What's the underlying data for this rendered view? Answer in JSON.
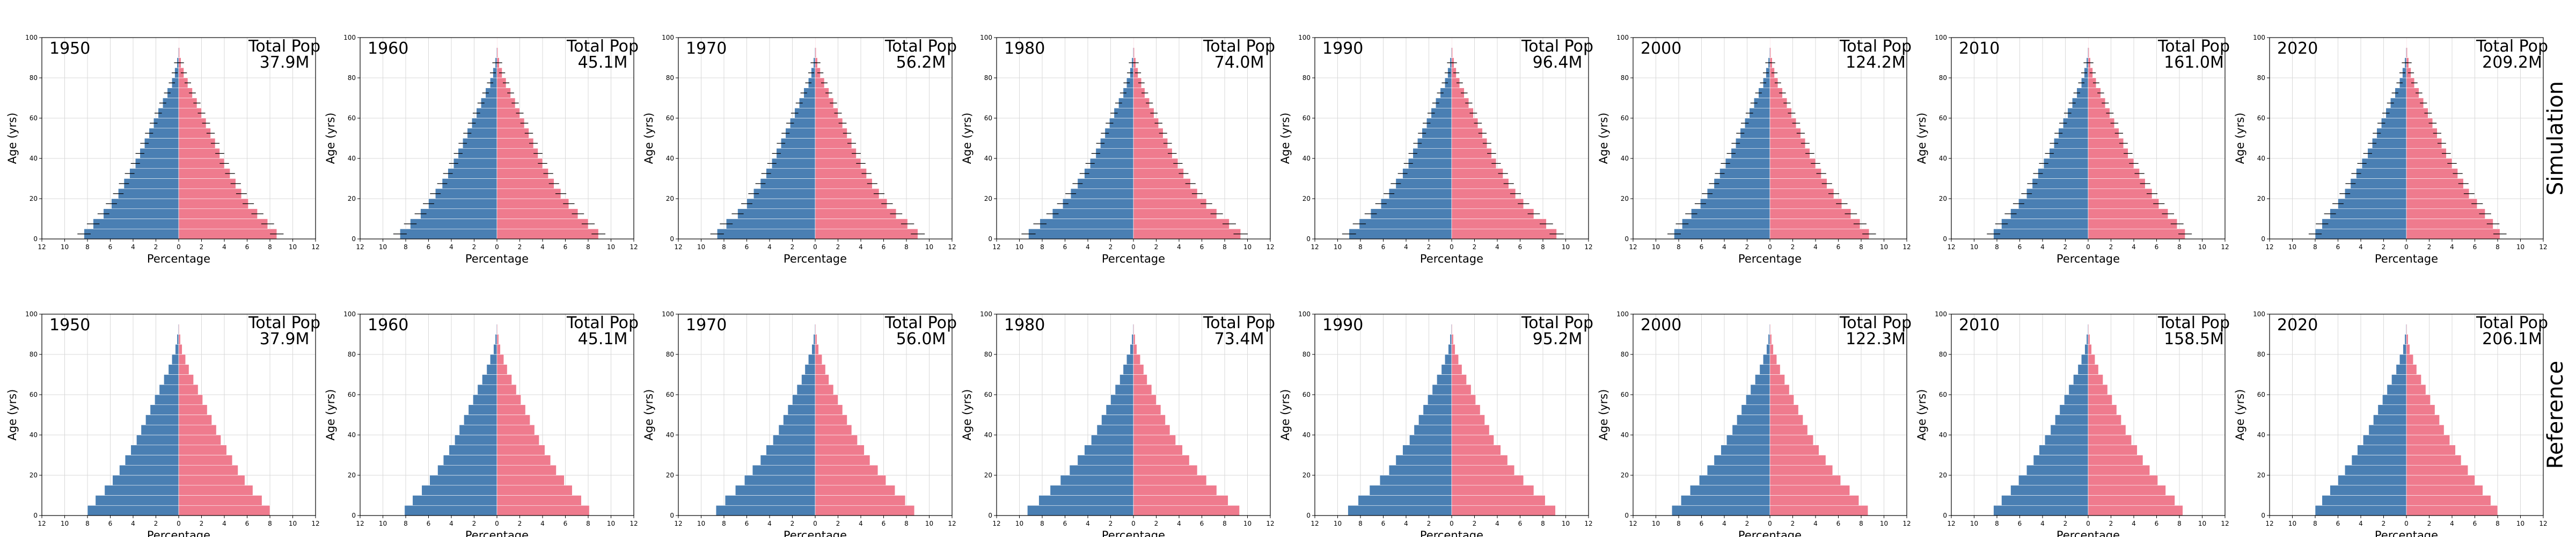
{
  "colors": {
    "male": "#4a7fb3",
    "female": "#ef7b8e",
    "grid": "#d8d8d8",
    "frame": "#000000"
  },
  "chart_data": {
    "type": "bar",
    "orientation": "horizontal",
    "layout": "population-pyramids-grid",
    "age_bins": [
      0,
      5,
      10,
      15,
      20,
      25,
      30,
      35,
      40,
      45,
      50,
      55,
      60,
      65,
      70,
      75,
      80,
      85,
      90,
      95
    ],
    "ylabel": "Age (yrs)",
    "xlabel": "Percentage",
    "xticks": [
      "12",
      "10",
      "8",
      "6",
      "4",
      "2",
      "0",
      "2",
      "4",
      "6",
      "8",
      "10",
      "12"
    ],
    "yticks": [
      "0",
      "20",
      "40",
      "60",
      "80",
      "100"
    ],
    "xlim": [
      -12,
      12
    ],
    "ylim": [
      0,
      100
    ],
    "grid": true,
    "total_prefix": "Total Pop",
    "rows": [
      {
        "label": "Simulation",
        "error_bars": true,
        "panels": [
          {
            "year": "1950",
            "total": "37.9M",
            "male": [
              8.3,
              7.5,
              6.6,
              5.9,
              5.3,
              4.8,
              4.3,
              3.8,
              3.4,
              3.0,
              2.6,
              2.2,
              1.8,
              1.4,
              1.0,
              0.6,
              0.35,
              0.15,
              0.05,
              0.02
            ],
            "female": [
              8.6,
              7.8,
              6.9,
              6.1,
              5.5,
              5.0,
              4.5,
              4.0,
              3.6,
              3.2,
              2.8,
              2.4,
              2.0,
              1.6,
              1.2,
              0.8,
              0.45,
              0.2,
              0.08,
              0.03
            ]
          },
          {
            "year": "1960",
            "total": "45.1M",
            "male": [
              8.5,
              7.6,
              6.7,
              6.0,
              5.4,
              4.8,
              4.3,
              3.8,
              3.4,
              3.0,
              2.6,
              2.2,
              1.8,
              1.4,
              1.0,
              0.6,
              0.35,
              0.15,
              0.05,
              0.02
            ],
            "female": [
              8.9,
              8.0,
              7.1,
              6.3,
              5.6,
              5.0,
              4.5,
              4.0,
              3.6,
              3.2,
              2.8,
              2.4,
              2.0,
              1.6,
              1.2,
              0.8,
              0.45,
              0.2,
              0.08,
              0.03
            ]
          },
          {
            "year": "1970",
            "total": "56.2M",
            "male": [
              8.6,
              7.8,
              6.8,
              6.0,
              5.4,
              4.8,
              4.3,
              3.8,
              3.4,
              3.0,
              2.6,
              2.2,
              1.8,
              1.4,
              1.0,
              0.6,
              0.35,
              0.15,
              0.05,
              0.02
            ],
            "female": [
              9.0,
              8.1,
              7.1,
              6.3,
              5.6,
              5.0,
              4.5,
              4.0,
              3.6,
              3.2,
              2.8,
              2.4,
              2.0,
              1.6,
              1.2,
              0.8,
              0.45,
              0.2,
              0.08,
              0.03
            ]
          },
          {
            "year": "1980",
            "total": "74.0M",
            "male": [
              9.2,
              8.2,
              7.1,
              6.2,
              5.5,
              4.9,
              4.3,
              3.8,
              3.3,
              2.9,
              2.5,
              2.1,
              1.7,
              1.3,
              0.9,
              0.6,
              0.3,
              0.15,
              0.05,
              0.02
            ],
            "female": [
              9.4,
              8.4,
              7.3,
              6.4,
              5.6,
              5.0,
              4.4,
              3.9,
              3.4,
              3.0,
              2.6,
              2.2,
              1.8,
              1.4,
              1.0,
              0.7,
              0.4,
              0.2,
              0.08,
              0.03
            ]
          },
          {
            "year": "1990",
            "total": "96.4M",
            "male": [
              9.0,
              8.1,
              7.1,
              6.2,
              5.5,
              4.9,
              4.3,
              3.8,
              3.4,
              3.0,
              2.6,
              2.2,
              1.8,
              1.4,
              1.0,
              0.6,
              0.35,
              0.15,
              0.05,
              0.02
            ],
            "female": [
              9.2,
              8.3,
              7.2,
              6.3,
              5.6,
              5.0,
              4.5,
              3.9,
              3.5,
              3.1,
              2.7,
              2.3,
              1.9,
              1.5,
              1.1,
              0.7,
              0.4,
              0.2,
              0.08,
              0.03
            ]
          },
          {
            "year": "2000",
            "total": "124.2M",
            "male": [
              8.4,
              7.7,
              6.9,
              6.1,
              5.5,
              4.9,
              4.4,
              3.9,
              3.4,
              3.0,
              2.6,
              2.2,
              1.8,
              1.4,
              1.0,
              0.6,
              0.35,
              0.15,
              0.05,
              0.02
            ],
            "female": [
              8.7,
              7.9,
              7.1,
              6.3,
              5.6,
              5.0,
              4.5,
              4.0,
              3.5,
              3.1,
              2.7,
              2.3,
              1.9,
              1.5,
              1.1,
              0.7,
              0.4,
              0.2,
              0.08,
              0.03
            ]
          },
          {
            "year": "2010",
            "total": "161.0M",
            "male": [
              8.3,
              7.6,
              6.8,
              6.1,
              5.4,
              4.9,
              4.4,
              3.9,
              3.4,
              3.0,
              2.6,
              2.2,
              1.8,
              1.4,
              1.0,
              0.6,
              0.35,
              0.15,
              0.05,
              0.02
            ],
            "female": [
              8.5,
              7.8,
              7.0,
              6.2,
              5.6,
              5.0,
              4.5,
              4.0,
              3.5,
              3.1,
              2.7,
              2.3,
              1.9,
              1.5,
              1.1,
              0.7,
              0.4,
              0.2,
              0.08,
              0.03
            ]
          },
          {
            "year": "2020",
            "total": "209.2M",
            "male": [
              8.0,
              7.4,
              6.7,
              6.0,
              5.4,
              4.9,
              4.4,
              3.9,
              3.4,
              3.0,
              2.6,
              2.2,
              1.8,
              1.4,
              1.0,
              0.6,
              0.35,
              0.15,
              0.05,
              0.02
            ],
            "female": [
              8.2,
              7.6,
              6.9,
              6.2,
              5.5,
              5.0,
              4.5,
              4.0,
              3.5,
              3.1,
              2.7,
              2.3,
              1.9,
              1.5,
              1.1,
              0.7,
              0.4,
              0.2,
              0.08,
              0.03
            ]
          }
        ]
      },
      {
        "label": "Reference",
        "error_bars": false,
        "panels": [
          {
            "year": "1950",
            "total": "37.9M",
            "male": [
              8.0,
              7.3,
              6.5,
              5.8,
              5.2,
              4.7,
              4.2,
              3.7,
              3.3,
              2.9,
              2.5,
              2.1,
              1.7,
              1.3,
              0.9,
              0.6,
              0.3,
              0.15,
              0.05,
              0.02
            ],
            "female": [
              8.0,
              7.3,
              6.5,
              5.8,
              5.2,
              4.7,
              4.2,
              3.7,
              3.3,
              2.9,
              2.5,
              2.1,
              1.7,
              1.3,
              0.9,
              0.6,
              0.3,
              0.15,
              0.05,
              0.02
            ]
          },
          {
            "year": "1960",
            "total": "45.1M",
            "male": [
              8.1,
              7.4,
              6.6,
              5.9,
              5.2,
              4.7,
              4.2,
              3.7,
              3.3,
              2.9,
              2.5,
              2.1,
              1.7,
              1.3,
              0.9,
              0.6,
              0.3,
              0.15,
              0.05,
              0.02
            ],
            "female": [
              8.1,
              7.4,
              6.6,
              5.9,
              5.2,
              4.7,
              4.2,
              3.7,
              3.3,
              2.9,
              2.5,
              2.1,
              1.7,
              1.3,
              0.9,
              0.6,
              0.3,
              0.15,
              0.05,
              0.02
            ]
          },
          {
            "year": "1970",
            "total": "56.0M",
            "male": [
              8.7,
              7.9,
              7.0,
              6.2,
              5.5,
              4.8,
              4.3,
              3.7,
              3.2,
              2.8,
              2.4,
              2.0,
              1.6,
              1.2,
              0.9,
              0.6,
              0.3,
              0.15,
              0.05,
              0.02
            ],
            "female": [
              8.7,
              7.9,
              7.0,
              6.2,
              5.5,
              4.8,
              4.3,
              3.7,
              3.2,
              2.8,
              2.4,
              2.0,
              1.6,
              1.2,
              0.9,
              0.6,
              0.3,
              0.15,
              0.05,
              0.02
            ]
          },
          {
            "year": "1980",
            "total": "73.4M",
            "male": [
              9.3,
              8.3,
              7.3,
              6.4,
              5.6,
              4.9,
              4.3,
              3.7,
              3.2,
              2.8,
              2.4,
              2.0,
              1.6,
              1.2,
              0.9,
              0.6,
              0.3,
              0.15,
              0.05,
              0.02
            ],
            "female": [
              9.3,
              8.3,
              7.3,
              6.4,
              5.6,
              4.9,
              4.3,
              3.7,
              3.2,
              2.8,
              2.4,
              2.0,
              1.6,
              1.2,
              0.9,
              0.6,
              0.3,
              0.15,
              0.05,
              0.02
            ]
          },
          {
            "year": "1990",
            "total": "95.2M",
            "male": [
              9.1,
              8.2,
              7.2,
              6.3,
              5.5,
              4.9,
              4.3,
              3.7,
              3.3,
              2.9,
              2.5,
              2.1,
              1.7,
              1.3,
              0.9,
              0.6,
              0.3,
              0.15,
              0.05,
              0.02
            ],
            "female": [
              9.1,
              8.2,
              7.2,
              6.3,
              5.5,
              4.9,
              4.3,
              3.7,
              3.3,
              2.9,
              2.5,
              2.1,
              1.7,
              1.3,
              0.9,
              0.6,
              0.3,
              0.15,
              0.05,
              0.02
            ]
          },
          {
            "year": "2000",
            "total": "122.3M",
            "male": [
              8.6,
              7.8,
              7.0,
              6.2,
              5.5,
              4.9,
              4.3,
              3.8,
              3.3,
              2.9,
              2.5,
              2.1,
              1.7,
              1.3,
              0.9,
              0.6,
              0.3,
              0.15,
              0.05,
              0.02
            ],
            "female": [
              8.6,
              7.8,
              7.0,
              6.2,
              5.5,
              4.9,
              4.3,
              3.8,
              3.3,
              2.9,
              2.5,
              2.1,
              1.7,
              1.3,
              0.9,
              0.6,
              0.3,
              0.15,
              0.05,
              0.02
            ]
          },
          {
            "year": "2010",
            "total": "158.5M",
            "male": [
              8.3,
              7.6,
              6.8,
              6.1,
              5.4,
              4.8,
              4.3,
              3.8,
              3.3,
              2.9,
              2.5,
              2.1,
              1.7,
              1.3,
              0.9,
              0.6,
              0.3,
              0.15,
              0.05,
              0.02
            ],
            "female": [
              8.3,
              7.6,
              6.8,
              6.1,
              5.4,
              4.8,
              4.3,
              3.8,
              3.3,
              2.9,
              2.5,
              2.1,
              1.7,
              1.3,
              0.9,
              0.6,
              0.3,
              0.15,
              0.05,
              0.02
            ]
          },
          {
            "year": "2020",
            "total": "206.1M",
            "male": [
              8.0,
              7.4,
              6.7,
              6.0,
              5.4,
              4.8,
              4.3,
              3.8,
              3.3,
              2.9,
              2.5,
              2.1,
              1.7,
              1.3,
              0.9,
              0.6,
              0.3,
              0.15,
              0.05,
              0.02
            ],
            "female": [
              8.0,
              7.4,
              6.7,
              6.0,
              5.4,
              4.8,
              4.3,
              3.8,
              3.3,
              2.9,
              2.5,
              2.1,
              1.7,
              1.3,
              0.9,
              0.6,
              0.3,
              0.15,
              0.05,
              0.02
            ]
          }
        ]
      }
    ]
  }
}
